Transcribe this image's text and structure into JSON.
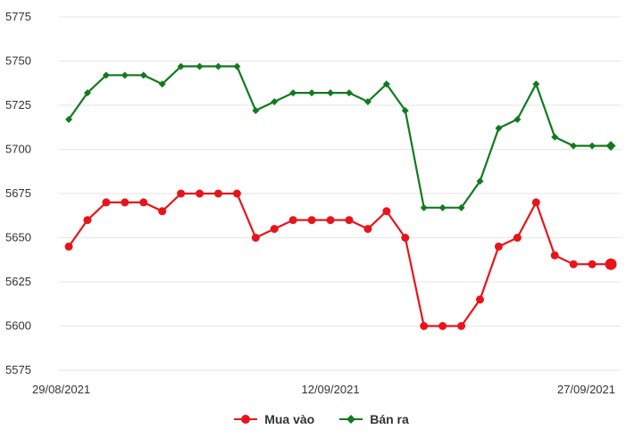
{
  "chart_data": {
    "type": "line",
    "x": [
      "29/08/2021",
      "30/08/2021",
      "31/08/2021",
      "01/09/2021",
      "02/09/2021",
      "03/09/2021",
      "04/09/2021",
      "05/09/2021",
      "06/09/2021",
      "07/09/2021",
      "08/09/2021",
      "09/09/2021",
      "10/09/2021",
      "11/09/2021",
      "12/09/2021",
      "13/09/2021",
      "14/09/2021",
      "15/09/2021",
      "16/09/2021",
      "17/09/2021",
      "18/09/2021",
      "19/09/2021",
      "20/09/2021",
      "21/09/2021",
      "22/09/2021",
      "23/09/2021",
      "24/09/2021",
      "25/09/2021",
      "26/09/2021",
      "27/09/2021"
    ],
    "x_tick_labels": [
      "29/08/2021",
      "12/09/2021",
      "27/09/2021"
    ],
    "y_ticks": [
      5575,
      5600,
      5625,
      5650,
      5675,
      5700,
      5725,
      5750,
      5775
    ],
    "ylim": [
      5575,
      5775
    ],
    "grid": true,
    "legend_position": "bottom",
    "series": [
      {
        "name": "Mua vào",
        "color": "#e8141a",
        "marker": "circle",
        "values": [
          5645,
          5660,
          5670,
          5670,
          5670,
          5665,
          5675,
          5675,
          5675,
          5675,
          5650,
          5655,
          5660,
          5660,
          5660,
          5660,
          5655,
          5665,
          5650,
          5600,
          5600,
          5600,
          5615,
          5645,
          5650,
          5670,
          5640,
          5635,
          5635,
          5635
        ]
      },
      {
        "name": "Bán ra",
        "color": "#117a1d",
        "marker": "diamond",
        "values": [
          5717,
          5732,
          5742,
          5742,
          5742,
          5737,
          5747,
          5747,
          5747,
          5747,
          5722,
          5727,
          5732,
          5732,
          5732,
          5732,
          5727,
          5737,
          5722,
          5667,
          5667,
          5667,
          5682,
          5712,
          5717,
          5737,
          5707,
          5702,
          5702,
          5702
        ]
      }
    ]
  }
}
